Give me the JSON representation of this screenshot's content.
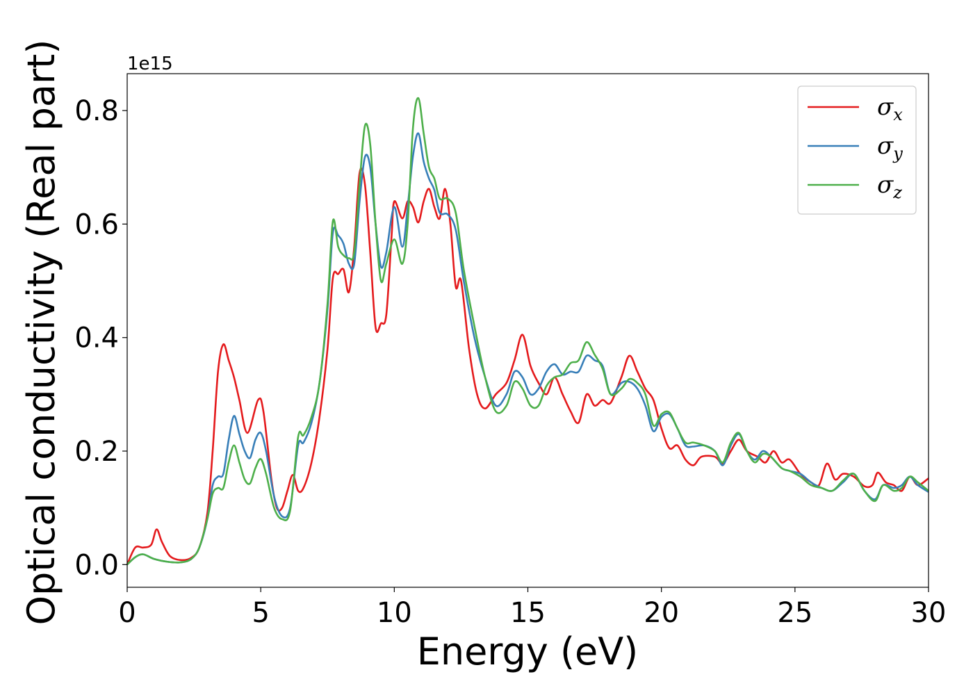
{
  "chart_data": {
    "type": "line",
    "xlabel": "Energy (eV)",
    "ylabel": "Optical conductivity (Real part)",
    "y_offset_label": "1e15",
    "xlim": [
      0,
      30
    ],
    "ylim": [
      -0.04,
      0.865
    ],
    "x_ticks": [
      0,
      5,
      10,
      15,
      20,
      25,
      30
    ],
    "x_tick_labels": [
      "0",
      "5",
      "10",
      "15",
      "20",
      "25",
      "30"
    ],
    "y_ticks": [
      0.0,
      0.2,
      0.4,
      0.6,
      0.8
    ],
    "y_tick_labels": [
      "0.0",
      "0.2",
      "0.4",
      "0.6",
      "0.8"
    ],
    "grid": false,
    "legend_position": "top-right",
    "series": [
      {
        "name": "σx",
        "base": "σ",
        "sub": "x",
        "color": "#e41a1c",
        "points": [
          [
            0,
            0
          ],
          [
            0.3,
            0.03
          ],
          [
            0.6,
            0.03
          ],
          [
            0.9,
            0.035
          ],
          [
            1.1,
            0.062
          ],
          [
            1.3,
            0.04
          ],
          [
            1.6,
            0.015
          ],
          [
            2,
            0.008
          ],
          [
            2.4,
            0.012
          ],
          [
            2.7,
            0.03
          ],
          [
            3.0,
            0.09
          ],
          [
            3.2,
            0.2
          ],
          [
            3.4,
            0.34
          ],
          [
            3.6,
            0.388
          ],
          [
            3.8,
            0.36
          ],
          [
            4.0,
            0.33
          ],
          [
            4.2,
            0.29
          ],
          [
            4.5,
            0.232
          ],
          [
            4.9,
            0.29
          ],
          [
            5.1,
            0.27
          ],
          [
            5.4,
            0.15
          ],
          [
            5.6,
            0.1
          ],
          [
            5.8,
            0.1
          ],
          [
            6.0,
            0.13
          ],
          [
            6.2,
            0.158
          ],
          [
            6.4,
            0.13
          ],
          [
            6.6,
            0.135
          ],
          [
            6.9,
            0.18
          ],
          [
            7.2,
            0.26
          ],
          [
            7.5,
            0.38
          ],
          [
            7.7,
            0.505
          ],
          [
            7.9,
            0.512
          ],
          [
            8.1,
            0.52
          ],
          [
            8.3,
            0.48
          ],
          [
            8.5,
            0.56
          ],
          [
            8.7,
            0.69
          ],
          [
            8.9,
            0.67
          ],
          [
            9.1,
            0.55
          ],
          [
            9.3,
            0.418
          ],
          [
            9.5,
            0.425
          ],
          [
            9.7,
            0.44
          ],
          [
            9.9,
            0.58
          ],
          [
            10.0,
            0.64
          ],
          [
            10.3,
            0.61
          ],
          [
            10.5,
            0.64
          ],
          [
            10.7,
            0.63
          ],
          [
            10.9,
            0.603
          ],
          [
            11.1,
            0.64
          ],
          [
            11.3,
            0.662
          ],
          [
            11.5,
            0.63
          ],
          [
            11.7,
            0.61
          ],
          [
            11.9,
            0.662
          ],
          [
            12.1,
            0.6
          ],
          [
            12.3,
            0.49
          ],
          [
            12.5,
            0.5
          ],
          [
            12.8,
            0.38
          ],
          [
            13.1,
            0.3
          ],
          [
            13.4,
            0.275
          ],
          [
            13.8,
            0.3
          ],
          [
            14.2,
            0.32
          ],
          [
            14.5,
            0.36
          ],
          [
            14.8,
            0.405
          ],
          [
            15.1,
            0.35
          ],
          [
            15.4,
            0.32
          ],
          [
            15.7,
            0.3
          ],
          [
            16.0,
            0.33
          ],
          [
            16.3,
            0.3
          ],
          [
            16.6,
            0.27
          ],
          [
            16.9,
            0.25
          ],
          [
            17.2,
            0.3
          ],
          [
            17.5,
            0.28
          ],
          [
            17.8,
            0.29
          ],
          [
            18.1,
            0.285
          ],
          [
            18.5,
            0.33
          ],
          [
            18.8,
            0.368
          ],
          [
            19.1,
            0.34
          ],
          [
            19.4,
            0.31
          ],
          [
            19.7,
            0.29
          ],
          [
            20.0,
            0.24
          ],
          [
            20.3,
            0.205
          ],
          [
            20.6,
            0.21
          ],
          [
            20.9,
            0.185
          ],
          [
            21.2,
            0.175
          ],
          [
            21.5,
            0.19
          ],
          [
            22.0,
            0.19
          ],
          [
            22.3,
            0.178
          ],
          [
            22.6,
            0.2
          ],
          [
            22.9,
            0.22
          ],
          [
            23.2,
            0.2
          ],
          [
            23.6,
            0.19
          ],
          [
            23.9,
            0.18
          ],
          [
            24.2,
            0.2
          ],
          [
            24.5,
            0.18
          ],
          [
            24.8,
            0.185
          ],
          [
            25.2,
            0.16
          ],
          [
            25.6,
            0.145
          ],
          [
            25.9,
            0.14
          ],
          [
            26.2,
            0.178
          ],
          [
            26.5,
            0.15
          ],
          [
            26.8,
            0.16
          ],
          [
            27.2,
            0.155
          ],
          [
            27.6,
            0.138
          ],
          [
            27.9,
            0.14
          ],
          [
            28.1,
            0.162
          ],
          [
            28.4,
            0.145
          ],
          [
            28.7,
            0.14
          ],
          [
            29.0,
            0.13
          ],
          [
            29.3,
            0.155
          ],
          [
            29.6,
            0.14
          ],
          [
            30.0,
            0.152
          ]
        ]
      },
      {
        "name": "σy",
        "base": "σ",
        "sub": "y",
        "color": "#377eb8",
        "points": [
          [
            0,
            0
          ],
          [
            0.3,
            0.013
          ],
          [
            0.6,
            0.018
          ],
          [
            1.0,
            0.01
          ],
          [
            1.5,
            0.005
          ],
          [
            2,
            0.004
          ],
          [
            2.4,
            0.01
          ],
          [
            2.7,
            0.03
          ],
          [
            3.0,
            0.08
          ],
          [
            3.2,
            0.14
          ],
          [
            3.4,
            0.155
          ],
          [
            3.6,
            0.16
          ],
          [
            3.8,
            0.22
          ],
          [
            4.0,
            0.262
          ],
          [
            4.2,
            0.23
          ],
          [
            4.4,
            0.2
          ],
          [
            4.6,
            0.188
          ],
          [
            4.8,
            0.22
          ],
          [
            5.0,
            0.232
          ],
          [
            5.2,
            0.2
          ],
          [
            5.5,
            0.12
          ],
          [
            5.8,
            0.085
          ],
          [
            6.1,
            0.1
          ],
          [
            6.4,
            0.21
          ],
          [
            6.6,
            0.215
          ],
          [
            6.9,
            0.25
          ],
          [
            7.2,
            0.32
          ],
          [
            7.5,
            0.45
          ],
          [
            7.7,
            0.585
          ],
          [
            7.9,
            0.58
          ],
          [
            8.1,
            0.565
          ],
          [
            8.3,
            0.53
          ],
          [
            8.5,
            0.53
          ],
          [
            8.7,
            0.64
          ],
          [
            8.9,
            0.718
          ],
          [
            9.1,
            0.7
          ],
          [
            9.3,
            0.6
          ],
          [
            9.5,
            0.525
          ],
          [
            9.7,
            0.55
          ],
          [
            10.0,
            0.63
          ],
          [
            10.3,
            0.56
          ],
          [
            10.5,
            0.63
          ],
          [
            10.7,
            0.72
          ],
          [
            10.9,
            0.76
          ],
          [
            11.1,
            0.71
          ],
          [
            11.3,
            0.68
          ],
          [
            11.5,
            0.66
          ],
          [
            11.7,
            0.62
          ],
          [
            12.0,
            0.617
          ],
          [
            12.3,
            0.59
          ],
          [
            12.6,
            0.5
          ],
          [
            13.0,
            0.4
          ],
          [
            13.4,
            0.33
          ],
          [
            13.8,
            0.28
          ],
          [
            14.2,
            0.3
          ],
          [
            14.5,
            0.34
          ],
          [
            14.8,
            0.33
          ],
          [
            15.1,
            0.3
          ],
          [
            15.4,
            0.31
          ],
          [
            15.7,
            0.34
          ],
          [
            16.0,
            0.353
          ],
          [
            16.3,
            0.335
          ],
          [
            16.6,
            0.34
          ],
          [
            16.9,
            0.34
          ],
          [
            17.2,
            0.368
          ],
          [
            17.5,
            0.36
          ],
          [
            17.8,
            0.35
          ],
          [
            18.1,
            0.3
          ],
          [
            18.5,
            0.32
          ],
          [
            18.8,
            0.322
          ],
          [
            19.1,
            0.31
          ],
          [
            19.4,
            0.28
          ],
          [
            19.7,
            0.235
          ],
          [
            20.0,
            0.26
          ],
          [
            20.3,
            0.265
          ],
          [
            20.6,
            0.24
          ],
          [
            20.9,
            0.21
          ],
          [
            21.2,
            0.208
          ],
          [
            21.6,
            0.21
          ],
          [
            22.0,
            0.2
          ],
          [
            22.3,
            0.175
          ],
          [
            22.6,
            0.21
          ],
          [
            22.9,
            0.23
          ],
          [
            23.2,
            0.2
          ],
          [
            23.5,
            0.185
          ],
          [
            23.8,
            0.2
          ],
          [
            24.1,
            0.19
          ],
          [
            24.5,
            0.17
          ],
          [
            24.8,
            0.165
          ],
          [
            25.2,
            0.16
          ],
          [
            25.6,
            0.145
          ],
          [
            26.0,
            0.135
          ],
          [
            26.4,
            0.13
          ],
          [
            26.8,
            0.145
          ],
          [
            27.2,
            0.16
          ],
          [
            27.6,
            0.13
          ],
          [
            28.0,
            0.115
          ],
          [
            28.3,
            0.14
          ],
          [
            28.7,
            0.135
          ],
          [
            29.0,
            0.14
          ],
          [
            29.3,
            0.155
          ],
          [
            29.6,
            0.14
          ],
          [
            30.0,
            0.128
          ]
        ]
      },
      {
        "name": "σz",
        "base": "σ",
        "sub": "z",
        "color": "#4daf4a",
        "points": [
          [
            0,
            0
          ],
          [
            0.3,
            0.013
          ],
          [
            0.6,
            0.018
          ],
          [
            1.0,
            0.01
          ],
          [
            1.5,
            0.005
          ],
          [
            2,
            0.004
          ],
          [
            2.4,
            0.01
          ],
          [
            2.7,
            0.03
          ],
          [
            3.0,
            0.08
          ],
          [
            3.2,
            0.125
          ],
          [
            3.4,
            0.135
          ],
          [
            3.6,
            0.135
          ],
          [
            3.8,
            0.18
          ],
          [
            4.0,
            0.21
          ],
          [
            4.2,
            0.18
          ],
          [
            4.4,
            0.15
          ],
          [
            4.6,
            0.143
          ],
          [
            4.8,
            0.17
          ],
          [
            5.0,
            0.186
          ],
          [
            5.2,
            0.16
          ],
          [
            5.5,
            0.1
          ],
          [
            5.8,
            0.08
          ],
          [
            6.1,
            0.095
          ],
          [
            6.4,
            0.225
          ],
          [
            6.6,
            0.228
          ],
          [
            6.9,
            0.26
          ],
          [
            7.2,
            0.32
          ],
          [
            7.5,
            0.46
          ],
          [
            7.7,
            0.605
          ],
          [
            7.9,
            0.56
          ],
          [
            8.1,
            0.545
          ],
          [
            8.3,
            0.54
          ],
          [
            8.5,
            0.55
          ],
          [
            8.7,
            0.67
          ],
          [
            8.9,
            0.773
          ],
          [
            9.1,
            0.74
          ],
          [
            9.3,
            0.6
          ],
          [
            9.5,
            0.5
          ],
          [
            9.7,
            0.53
          ],
          [
            10.0,
            0.573
          ],
          [
            10.3,
            0.53
          ],
          [
            10.5,
            0.6
          ],
          [
            10.7,
            0.77
          ],
          [
            10.9,
            0.822
          ],
          [
            11.1,
            0.76
          ],
          [
            11.3,
            0.7
          ],
          [
            11.5,
            0.68
          ],
          [
            11.7,
            0.645
          ],
          [
            12.0,
            0.645
          ],
          [
            12.3,
            0.62
          ],
          [
            12.6,
            0.52
          ],
          [
            13.0,
            0.42
          ],
          [
            13.4,
            0.33
          ],
          [
            13.8,
            0.27
          ],
          [
            14.2,
            0.28
          ],
          [
            14.5,
            0.322
          ],
          [
            14.8,
            0.31
          ],
          [
            15.1,
            0.28
          ],
          [
            15.4,
            0.28
          ],
          [
            15.7,
            0.315
          ],
          [
            16.0,
            0.33
          ],
          [
            16.3,
            0.335
          ],
          [
            16.6,
            0.355
          ],
          [
            16.9,
            0.36
          ],
          [
            17.2,
            0.392
          ],
          [
            17.5,
            0.37
          ],
          [
            17.8,
            0.345
          ],
          [
            18.1,
            0.3
          ],
          [
            18.5,
            0.31
          ],
          [
            18.8,
            0.327
          ],
          [
            19.1,
            0.32
          ],
          [
            19.4,
            0.3
          ],
          [
            19.7,
            0.245
          ],
          [
            20.0,
            0.265
          ],
          [
            20.3,
            0.268
          ],
          [
            20.6,
            0.24
          ],
          [
            20.9,
            0.215
          ],
          [
            21.2,
            0.215
          ],
          [
            21.6,
            0.21
          ],
          [
            22.0,
            0.2
          ],
          [
            22.3,
            0.18
          ],
          [
            22.6,
            0.215
          ],
          [
            22.9,
            0.232
          ],
          [
            23.2,
            0.2
          ],
          [
            23.5,
            0.18
          ],
          [
            23.8,
            0.195
          ],
          [
            24.1,
            0.19
          ],
          [
            24.5,
            0.17
          ],
          [
            24.8,
            0.165
          ],
          [
            25.2,
            0.155
          ],
          [
            25.6,
            0.14
          ],
          [
            26.0,
            0.135
          ],
          [
            26.4,
            0.13
          ],
          [
            26.8,
            0.148
          ],
          [
            27.2,
            0.16
          ],
          [
            27.6,
            0.13
          ],
          [
            28.0,
            0.112
          ],
          [
            28.3,
            0.14
          ],
          [
            28.7,
            0.13
          ],
          [
            29.0,
            0.135
          ],
          [
            29.3,
            0.155
          ],
          [
            29.6,
            0.145
          ],
          [
            30.0,
            0.13
          ]
        ]
      }
    ]
  }
}
